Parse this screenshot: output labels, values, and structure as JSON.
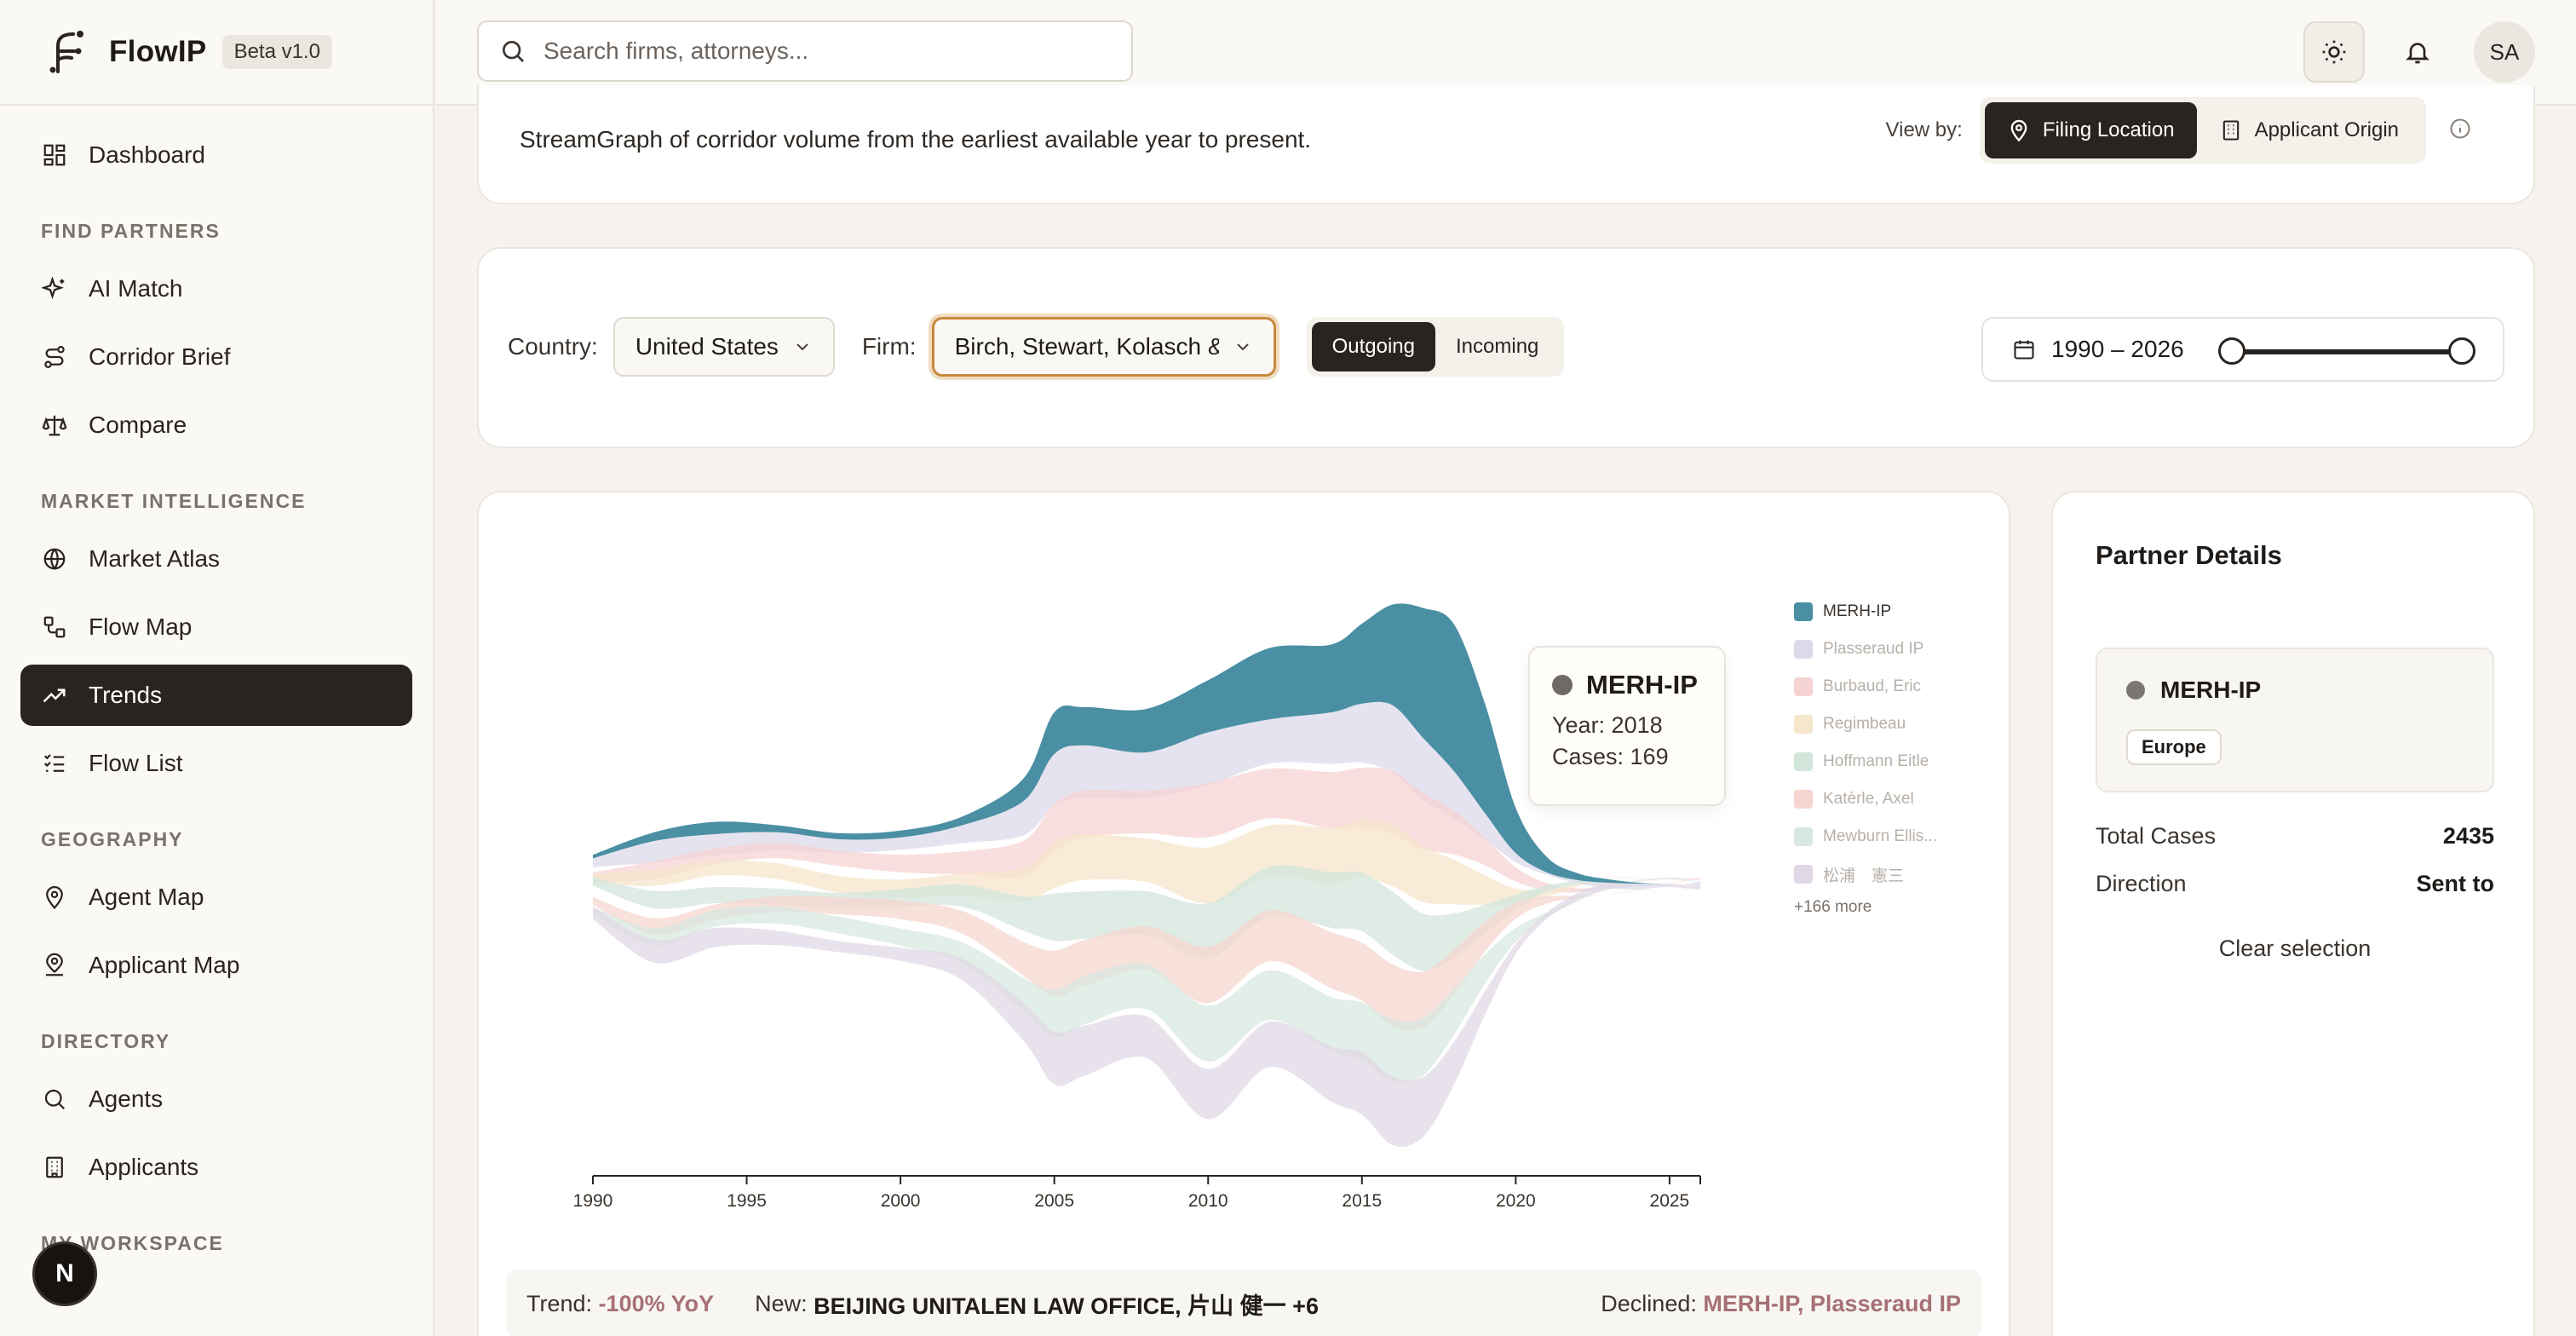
{
  "app": {
    "name": "FlowIP",
    "version_badge": "Beta v1.0"
  },
  "search": {
    "placeholder": "Search firms, attorneys..."
  },
  "user": {
    "initials": "SA"
  },
  "sidebar": {
    "dashboard": "Dashboard",
    "find_partners": {
      "title": "FIND PARTNERS",
      "items": [
        "AI Match",
        "Corridor Brief",
        "Compare"
      ]
    },
    "market_intelligence": {
      "title": "MARKET INTELLIGENCE",
      "items": [
        "Market Atlas",
        "Flow Map",
        "Trends",
        "Flow List"
      ]
    },
    "geography": {
      "title": "GEOGRAPHY",
      "items": [
        "Agent Map",
        "Applicant Map"
      ]
    },
    "directory": {
      "title": "DIRECTORY",
      "items": [
        "Agents",
        "Applicants"
      ]
    },
    "workspace_title": "MY WORKSPACE",
    "active_item": "Trends",
    "floating_avatar": "N"
  },
  "header_card": {
    "description": "StreamGraph of corridor volume from the earliest available year to present.",
    "view_by_label": "View by:",
    "view_options": [
      "Filing Location",
      "Applicant Origin"
    ],
    "selected_view": "Filing Location"
  },
  "filters": {
    "country_label": "Country:",
    "country_value": "United States",
    "firm_label": "Firm:",
    "firm_value": "Birch, Stewart, Kolasch & Birch",
    "direction_options": [
      "Outgoing",
      "Incoming"
    ],
    "direction_selected": "Outgoing",
    "year_range_text": "1990 – 2026",
    "year_range": [
      1990,
      2026
    ]
  },
  "chart_data": {
    "type": "area",
    "subtype": "streamgraph",
    "x_ticks": [
      1990,
      1995,
      2000,
      2005,
      2010,
      2015,
      2020,
      2025
    ],
    "xlim": [
      1990,
      2026
    ],
    "legend_position": "right",
    "legend": [
      {
        "name": "MERH-IP",
        "color": "#4a8fa3",
        "highlighted": true
      },
      {
        "name": "Plasseraud IP",
        "color": "#dcdaea",
        "highlighted": false
      },
      {
        "name": "Burbaud, Eric",
        "color": "#f5d3d3",
        "highlighted": false
      },
      {
        "name": "Regimbeau",
        "color": "#f6e6cb",
        "highlighted": false
      },
      {
        "name": "Hoffmann Eitle",
        "color": "#d3e6dc",
        "highlighted": false
      },
      {
        "name": "Katèrle, Axel",
        "color": "#f5d5cf",
        "highlighted": false
      },
      {
        "name": "Mewburn Ellis...",
        "color": "#d8e8e0",
        "highlighted": false
      },
      {
        "name": "松浦　憲三",
        "color": "#e0d8e6",
        "highlighted": false
      }
    ],
    "legend_more": "+166 more",
    "highlighted_series": {
      "name": "MERH-IP",
      "x": [
        1990,
        1992,
        1994,
        1996,
        1998,
        2000,
        2002,
        2004,
        2005,
        2006,
        2008,
        2010,
        2012,
        2014,
        2015,
        2016,
        2017,
        2018,
        2019,
        2020,
        2021,
        2022,
        2023,
        2024,
        2025,
        2026
      ],
      "values": [
        4,
        10,
        14,
        8,
        7,
        8,
        10,
        26,
        48,
        44,
        50,
        60,
        82,
        78,
        92,
        116,
        150,
        169,
        126,
        52,
        18,
        8,
        4,
        1,
        0,
        0
      ]
    },
    "stream_top_y": [
      30,
      50,
      58,
      60,
      52,
      54,
      68,
      96,
      150,
      160,
      152,
      175,
      190,
      198,
      208,
      206,
      168,
      130,
      82,
      36,
      14,
      5,
      2,
      1,
      0.5,
      0
    ],
    "stream_bottom_y": [
      -40,
      -90,
      -72,
      -70,
      -78,
      -88,
      -110,
      -180,
      -230,
      -220,
      -200,
      -270,
      -210,
      -250,
      -265,
      -300,
      -290,
      -230,
      -150,
      -80,
      -40,
      -18,
      -6,
      -2,
      -0.5,
      0
    ],
    "tooltip": {
      "series": "MERH-IP",
      "year_text": "Year: 2018",
      "cases_text": "Cases: 169"
    }
  },
  "partner": {
    "title": "Partner Details",
    "name": "MERH-IP",
    "region": "Europe",
    "total_cases_label": "Total Cases",
    "total_cases": "2435",
    "direction_label": "Direction",
    "direction": "Sent to",
    "clear_label": "Clear selection"
  },
  "trend_bar": {
    "trend_label": "Trend:",
    "trend_value": "-100% YoY",
    "new_label": "New:",
    "new_value": "BEIJING UNITALEN LAW OFFICE, 片山 健一 +6",
    "declined_label": "Declined:",
    "declined_value": "MERH-IP, Plasseraud IP"
  },
  "colors": {
    "accent_dark": "#2a2420",
    "highlight_series": "#4a8fa3",
    "focus_ring": "#c98a3c",
    "negative": "#a67075"
  }
}
